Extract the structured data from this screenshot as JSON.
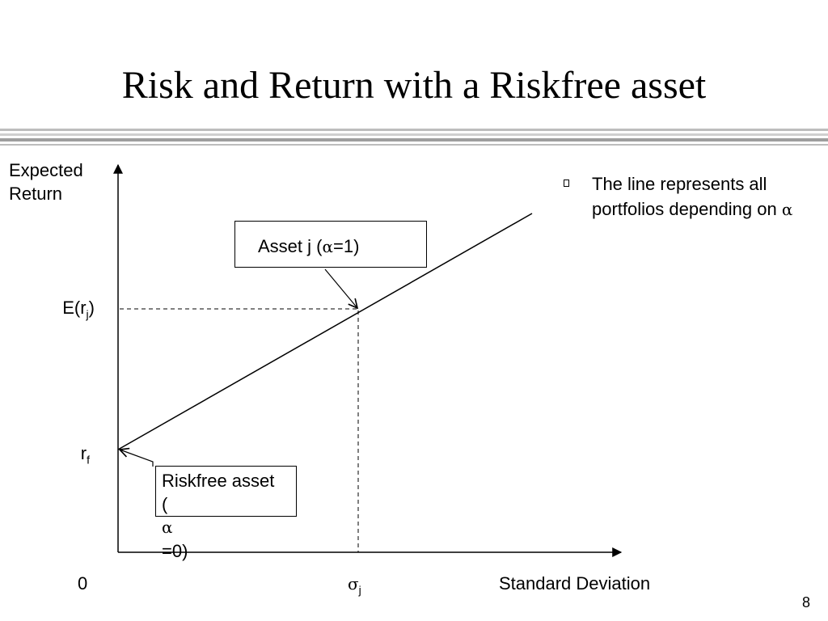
{
  "slide": {
    "title": "Risk and Return with a Riskfree asset",
    "page_number": "8"
  },
  "diagram": {
    "y_axis_label": [
      "Expected",
      "Return"
    ],
    "x_axis_label": "Standard Deviation",
    "origin_label": "0",
    "y_ticks": {
      "expected_return": {
        "base": "E(r",
        "sub": "j",
        "tail": ")"
      },
      "riskfree_rate": {
        "base": "r",
        "sub": "f"
      }
    },
    "x_ticks": {
      "sigma": {
        "symbol": "σ",
        "sub": "j"
      }
    },
    "callouts": {
      "asset_j": {
        "before": "Asset j (",
        "symbol": "α",
        "after": "=1)"
      },
      "riskfree": {
        "line1": "Riskfree asset",
        "line2_before": "(",
        "symbol": "α",
        "line2_after": "=0)"
      }
    }
  },
  "bullets": [
    {
      "text": "The line represents all portfolios depending on ",
      "symbol": "α"
    }
  ],
  "colors": {
    "title_rules": [
      "#bdbdbd",
      "#cfcfcf",
      "#9e9e9e",
      "#bdbdbd"
    ],
    "ink": "#000000"
  }
}
